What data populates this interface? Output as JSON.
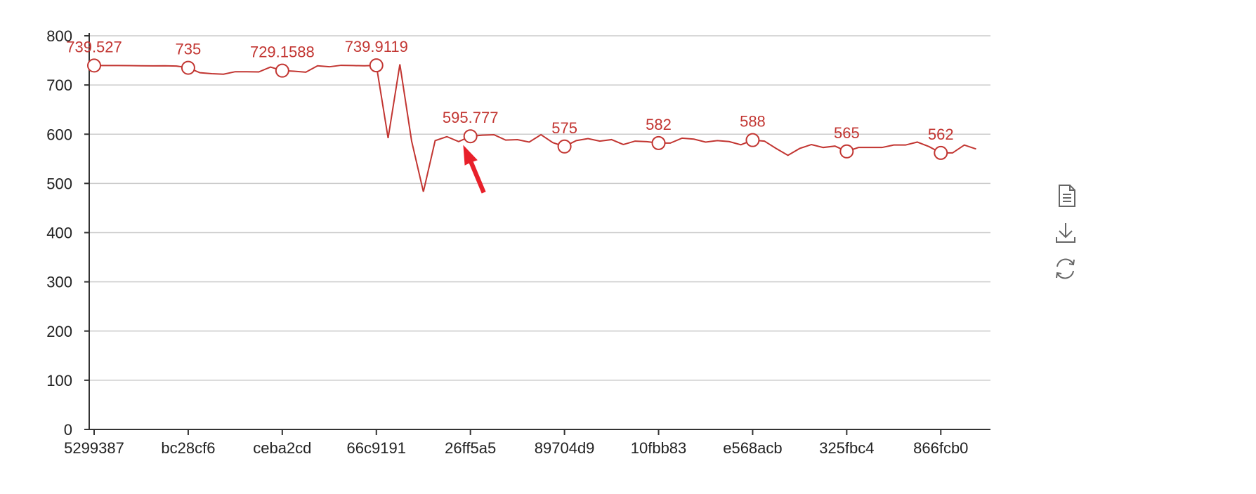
{
  "chart_data": {
    "type": "line",
    "ylim": [
      0,
      800
    ],
    "yticks": [
      0,
      100,
      200,
      300,
      400,
      500,
      600,
      700,
      800
    ],
    "x_tick_labels": [
      "5299387",
      "bc28cf6",
      "ceba2cd",
      "66c9191",
      "26ff5a5",
      "89704d9",
      "10fbb83",
      "e568acb",
      "325fbc4",
      "866fcb0"
    ],
    "series": [
      {
        "values": [
          739.527,
          739.5,
          739.6,
          739.4,
          739.0,
          738.8,
          739.0,
          738.5,
          735.0,
          724.9286,
          723.0,
          722.0,
          727.0,
          727.0,
          726.5,
          736.5,
          729.1588,
          728.0,
          726.0,
          739.0,
          737.0,
          740.0,
          739.5,
          739.0,
          739.9119,
          592.0,
          742.0,
          586.0,
          483.0,
          587.0,
          595.0,
          585.0,
          595.777,
          598.0,
          599.0,
          588.0,
          589.0,
          584.0,
          599.0,
          582.9933,
          575.0,
          587.0,
          591.0,
          586.0,
          589.0,
          579.0,
          586.0,
          584.8806,
          582.0,
          582.0,
          592.0,
          590.0,
          584.0,
          587.0,
          585.0,
          578.4673,
          588.0,
          586.0,
          571.0,
          557.0,
          571.0,
          579.0,
          573.0,
          575.8143,
          565.0,
          573.0,
          573.0,
          573.0,
          578.0,
          578.0,
          584.0,
          574.7611,
          562.0,
          562.0,
          578.0,
          570.0
        ],
        "label_every": 8,
        "color": "#c23531"
      }
    ]
  },
  "toolbox": {
    "data_view_icon": "document-icon",
    "save_icon": "download-icon",
    "restore_icon": "refresh-icon"
  },
  "annotation": {
    "icon": "red-arrow-icon",
    "color": "#e8202a"
  }
}
